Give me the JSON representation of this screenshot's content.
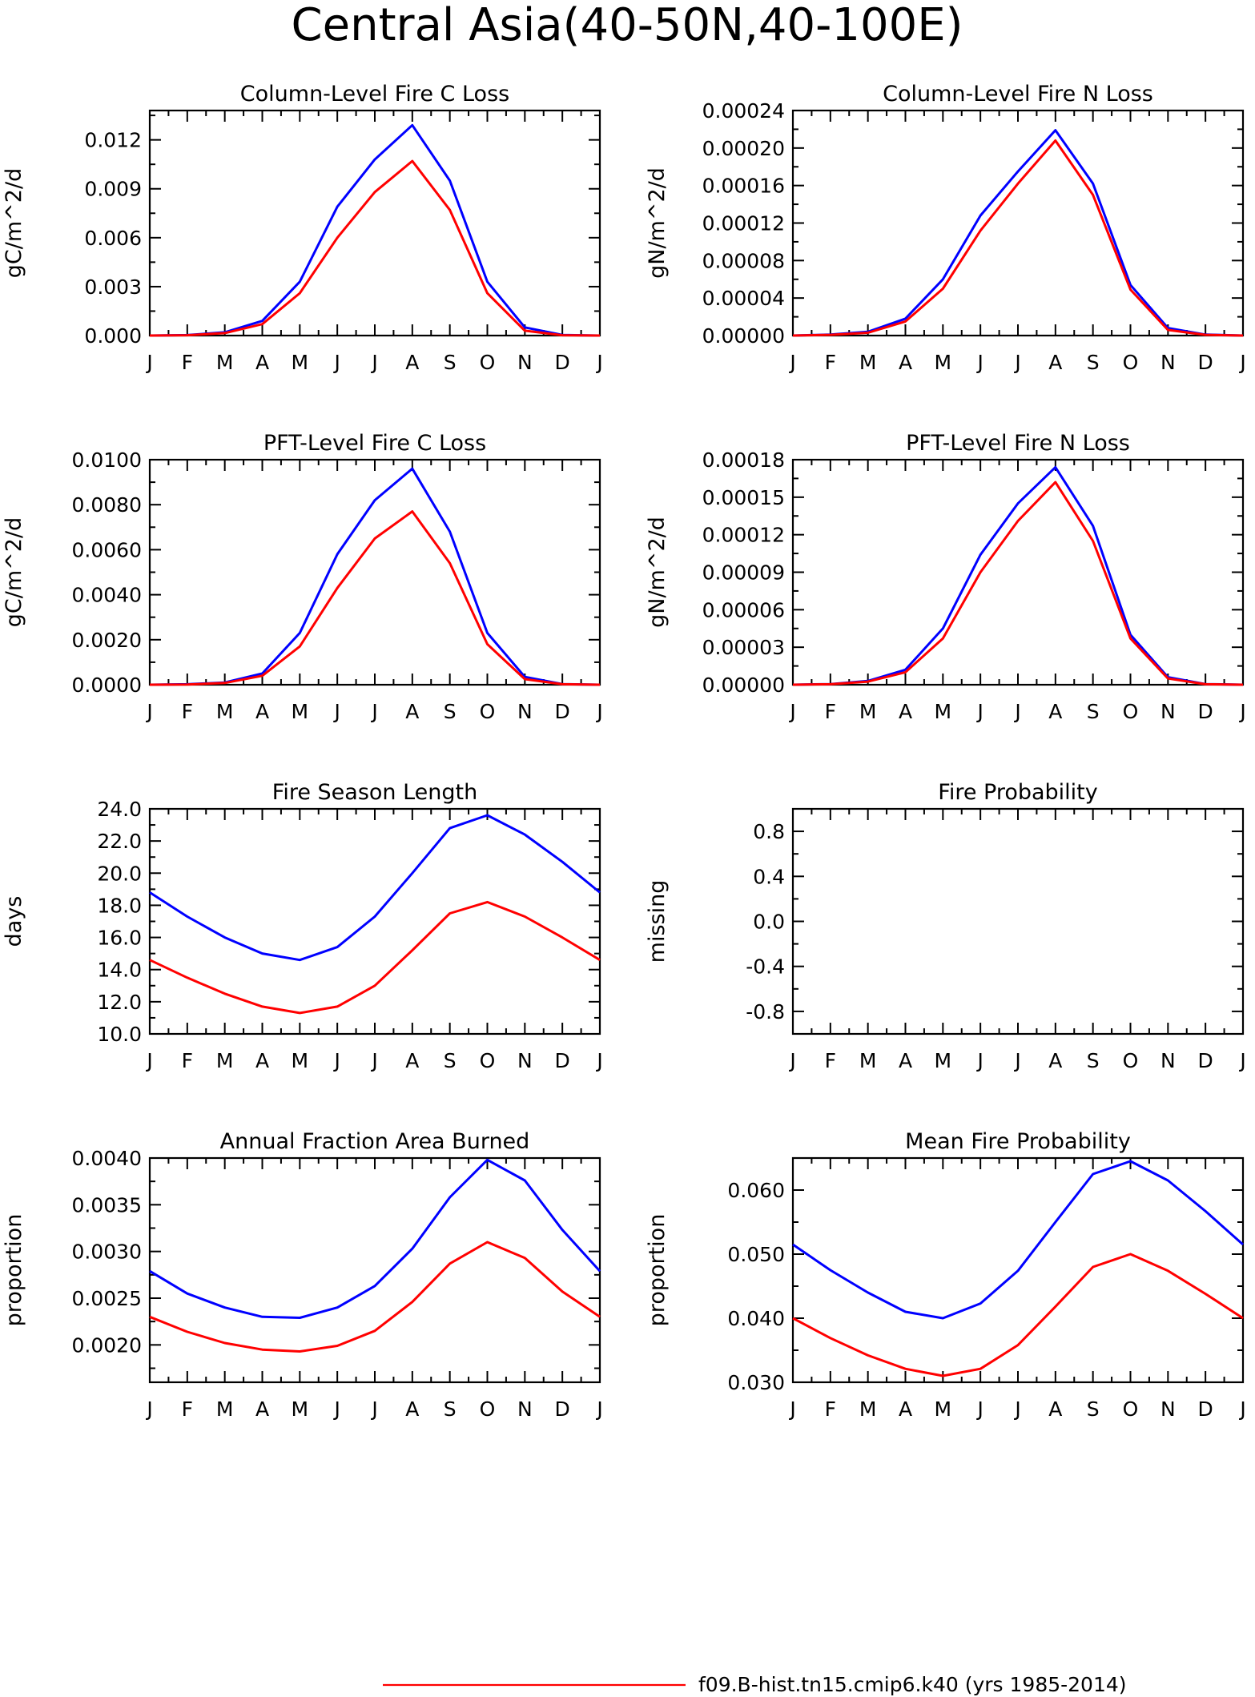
{
  "figure": {
    "title": "Central Asia(40-50N,40-100E)"
  },
  "colors": {
    "run_red": "#ff0000",
    "run_blue": "#0000ff",
    "axis": "#000000"
  },
  "legend": {
    "entries": [
      {
        "label": "f09.B-hist.tn15.cmip6.k40 (yrs 1985-2014)",
        "color": "#ff0000"
      }
    ]
  },
  "chart_data": [
    {
      "type": "line",
      "title": "Column-Level Fire C Loss",
      "ylabel": "gC/m^2/d",
      "x": [
        "J",
        "F",
        "M",
        "A",
        "M",
        "J",
        "J",
        "A",
        "S",
        "O",
        "N",
        "D",
        "J"
      ],
      "ylim": [
        0,
        0.0138
      ],
      "yticks": [
        "0.000",
        "0.003",
        "0.006",
        "0.009",
        "0.012"
      ],
      "ytick_values": [
        0,
        0.003,
        0.006,
        0.009,
        0.012
      ],
      "series": [
        {
          "color": "#0000ff",
          "values": [
            0.0,
            3e-05,
            0.0002,
            0.0009,
            0.0033,
            0.0079,
            0.0108,
            0.0129,
            0.0095,
            0.0033,
            0.0005,
            4e-05,
            0.0
          ]
        },
        {
          "color": "#ff0000",
          "values": [
            0.0,
            2e-05,
            0.00015,
            0.0007,
            0.0026,
            0.006,
            0.0088,
            0.0107,
            0.0077,
            0.0026,
            0.0003,
            2e-05,
            0.0
          ]
        }
      ]
    },
    {
      "type": "line",
      "title": "Column-Level Fire N Loss",
      "ylabel": "gN/m^2/d",
      "x": [
        "J",
        "F",
        "M",
        "A",
        "M",
        "J",
        "J",
        "A",
        "S",
        "O",
        "N",
        "D",
        "J"
      ],
      "ylim": [
        0,
        0.00024
      ],
      "yticks": [
        "0.00000",
        "0.00004",
        "0.00008",
        "0.00012",
        "0.00016",
        "0.00020",
        "0.00024"
      ],
      "ytick_values": [
        0,
        4e-05,
        8e-05,
        0.00012,
        0.00016,
        0.0002,
        0.00024
      ],
      "series": [
        {
          "color": "#0000ff",
          "values": [
            0.0,
            1e-06,
            4e-06,
            1.8e-05,
            6e-05,
            0.000128,
            0.000175,
            0.000219,
            0.000162,
            5.4e-05,
            8e-06,
            1e-06,
            0.0
          ]
        },
        {
          "color": "#ff0000",
          "values": [
            0.0,
            8e-07,
            3e-06,
            1.5e-05,
            5e-05,
            0.000112,
            0.000162,
            0.000208,
            0.00015,
            4.9e-05,
            6e-06,
            8e-07,
            0.0
          ]
        }
      ]
    },
    {
      "type": "line",
      "title": "PFT-Level Fire C Loss",
      "ylabel": "gC/m^2/d",
      "x": [
        "J",
        "F",
        "M",
        "A",
        "M",
        "J",
        "J",
        "A",
        "S",
        "O",
        "N",
        "D",
        "J"
      ],
      "ylim": [
        0,
        0.01
      ],
      "yticks": [
        "0.0000",
        "0.0020",
        "0.0040",
        "0.0060",
        "0.0080",
        "0.0100"
      ],
      "ytick_values": [
        0,
        0.002,
        0.004,
        0.006,
        0.008,
        0.01
      ],
      "series": [
        {
          "color": "#0000ff",
          "values": [
            0.0,
            2e-05,
            0.0001,
            0.0005,
            0.0023,
            0.0058,
            0.0082,
            0.0096,
            0.0068,
            0.0023,
            0.00035,
            3e-05,
            0.0
          ]
        },
        {
          "color": "#ff0000",
          "values": [
            0.0,
            1e-05,
            8e-05,
            0.0004,
            0.0017,
            0.0043,
            0.0065,
            0.0077,
            0.0054,
            0.0018,
            0.00025,
            2e-05,
            0.0
          ]
        }
      ]
    },
    {
      "type": "line",
      "title": "PFT-Level Fire N Loss",
      "ylabel": "gN/m^2/d",
      "x": [
        "J",
        "F",
        "M",
        "A",
        "M",
        "J",
        "J",
        "A",
        "S",
        "O",
        "N",
        "D",
        "J"
      ],
      "ylim": [
        0,
        0.00018
      ],
      "yticks": [
        "0.00000",
        "0.00003",
        "0.00006",
        "0.00009",
        "0.00012",
        "0.00015",
        "0.00018"
      ],
      "ytick_values": [
        0,
        3e-05,
        6e-05,
        9e-05,
        0.00012,
        0.00015,
        0.00018
      ],
      "series": [
        {
          "color": "#0000ff",
          "values": [
            0.0,
            5e-07,
            3e-06,
            1.2e-05,
            4.5e-05,
            0.000104,
            0.000145,
            0.000174,
            0.000127,
            4e-05,
            6e-06,
            5e-07,
            0.0
          ]
        },
        {
          "color": "#ff0000",
          "values": [
            0.0,
            4e-07,
            2.5e-06,
            1e-05,
            3.7e-05,
            9e-05,
            0.000131,
            0.000162,
            0.000115,
            3.7e-05,
            5e-06,
            4e-07,
            0.0
          ]
        }
      ]
    },
    {
      "type": "line",
      "title": "Fire Season Length",
      "ylabel": "days",
      "x": [
        "J",
        "F",
        "M",
        "A",
        "M",
        "J",
        "J",
        "A",
        "S",
        "O",
        "N",
        "D",
        "J"
      ],
      "ylim": [
        10,
        24
      ],
      "yticks": [
        "10.0",
        "12.0",
        "14.0",
        "16.0",
        "18.0",
        "20.0",
        "22.0",
        "24.0"
      ],
      "ytick_values": [
        10,
        12,
        14,
        16,
        18,
        20,
        22,
        24
      ],
      "series": [
        {
          "color": "#0000ff",
          "values": [
            18.8,
            17.3,
            16.0,
            15.0,
            14.6,
            15.4,
            17.3,
            20.0,
            22.8,
            23.6,
            22.4,
            20.7,
            18.8
          ]
        },
        {
          "color": "#ff0000",
          "values": [
            14.6,
            13.5,
            12.5,
            11.7,
            11.3,
            11.7,
            13.0,
            15.2,
            17.5,
            18.2,
            17.3,
            16.0,
            14.6
          ]
        }
      ]
    },
    {
      "type": "line",
      "title": "Fire Probability",
      "ylabel": "missing",
      "x": [
        "J",
        "F",
        "M",
        "A",
        "M",
        "J",
        "J",
        "A",
        "S",
        "O",
        "N",
        "D",
        "J"
      ],
      "ylim": [
        -1,
        1
      ],
      "yticks": [
        "-0.8",
        "-0.4",
        "0.0",
        "0.4",
        "0.8"
      ],
      "ytick_values": [
        -0.8,
        -0.4,
        0,
        0.4,
        0.8
      ],
      "series": []
    },
    {
      "type": "line",
      "title": "Annual Fraction Area Burned",
      "ylabel": "proportion",
      "x": [
        "J",
        "F",
        "M",
        "A",
        "M",
        "J",
        "J",
        "A",
        "S",
        "O",
        "N",
        "D",
        "J"
      ],
      "ylim": [
        0.0016,
        0.004
      ],
      "yticks": [
        "0.0020",
        "0.0025",
        "0.0030",
        "0.0035",
        "0.0040"
      ],
      "ytick_values": [
        0.002,
        0.0025,
        0.003,
        0.0035,
        0.004
      ],
      "series": [
        {
          "color": "#0000ff",
          "values": [
            0.00279,
            0.00255,
            0.0024,
            0.0023,
            0.00229,
            0.0024,
            0.00263,
            0.00303,
            0.00358,
            0.00398,
            0.00376,
            0.00323,
            0.00279
          ]
        },
        {
          "color": "#ff0000",
          "values": [
            0.0023,
            0.00214,
            0.00202,
            0.00195,
            0.00193,
            0.00199,
            0.00215,
            0.00246,
            0.00287,
            0.0031,
            0.00293,
            0.00257,
            0.0023
          ]
        }
      ]
    },
    {
      "type": "line",
      "title": "Mean Fire Probability",
      "ylabel": "proportion",
      "x": [
        "J",
        "F",
        "M",
        "A",
        "M",
        "J",
        "J",
        "A",
        "S",
        "O",
        "N",
        "D",
        "J"
      ],
      "ylim": [
        0.03,
        0.065
      ],
      "yticks": [
        "0.030",
        "0.040",
        "0.050",
        "0.060"
      ],
      "ytick_values": [
        0.03,
        0.04,
        0.05,
        0.06
      ],
      "series": [
        {
          "color": "#0000ff",
          "values": [
            0.0515,
            0.0475,
            0.044,
            0.041,
            0.04,
            0.0423,
            0.0474,
            0.055,
            0.0625,
            0.0645,
            0.0615,
            0.0567,
            0.0515
          ]
        },
        {
          "color": "#ff0000",
          "values": [
            0.04,
            0.0369,
            0.0342,
            0.0321,
            0.031,
            0.0321,
            0.0358,
            0.0418,
            0.048,
            0.05,
            0.0474,
            0.0438,
            0.04
          ]
        }
      ]
    }
  ]
}
